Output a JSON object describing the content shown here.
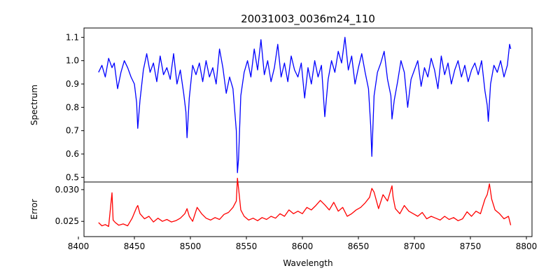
{
  "chart_data": [
    {
      "type": "line",
      "title": "20031003_0036m24_110",
      "xlabel": "",
      "ylabel": "Spectrum",
      "xlim": [
        8405,
        8805
      ],
      "ylim": [
        0.48,
        1.14
      ],
      "yticks": [
        0.5,
        0.6,
        0.7,
        0.8,
        0.9,
        1.0,
        1.1
      ],
      "ytick_labels": [
        "0.5",
        "0.6",
        "0.7",
        "0.8",
        "0.9",
        "1.0",
        "1.1"
      ],
      "grid": false,
      "series": [
        {
          "color": "#0000ff",
          "x": [
            8418,
            8421,
            8424,
            8427,
            8430,
            8432,
            8435,
            8438,
            8441,
            8444,
            8447,
            8450,
            8452,
            8453,
            8455,
            8458,
            8461,
            8464,
            8467,
            8470,
            8473,
            8476,
            8479,
            8482,
            8485,
            8488,
            8491,
            8494,
            8496,
            8497,
            8499,
            8502,
            8505,
            8508,
            8511,
            8514,
            8517,
            8520,
            8523,
            8526,
            8529,
            8532,
            8535,
            8538,
            8541,
            8542,
            8543,
            8545,
            8548,
            8551,
            8554,
            8557,
            8560,
            8563,
            8566,
            8569,
            8572,
            8575,
            8578,
            8581,
            8584,
            8587,
            8590,
            8593,
            8596,
            8599,
            8602,
            8605,
            8608,
            8611,
            8614,
            8617,
            8620,
            8623,
            8626,
            8629,
            8632,
            8635,
            8638,
            8641,
            8644,
            8647,
            8650,
            8653,
            8656,
            8659,
            8661,
            8662,
            8664,
            8667,
            8670,
            8673,
            8676,
            8679,
            8680,
            8682,
            8685,
            8688,
            8691,
            8694,
            8697,
            8700,
            8703,
            8706,
            8709,
            8712,
            8715,
            8718,
            8721,
            8724,
            8727,
            8730,
            8733,
            8736,
            8739,
            8742,
            8745,
            8748,
            8751,
            8754,
            8757,
            8760,
            8763,
            8765,
            8766,
            8768,
            8771,
            8774,
            8777,
            8780,
            8783,
            8785,
            8786
          ],
          "y": [
            0.95,
            0.98,
            0.93,
            1.01,
            0.97,
            0.99,
            0.88,
            0.95,
            1.0,
            0.97,
            0.93,
            0.9,
            0.82,
            0.71,
            0.83,
            0.96,
            1.03,
            0.95,
            0.99,
            0.91,
            1.02,
            0.94,
            0.97,
            0.92,
            1.03,
            0.9,
            0.96,
            0.86,
            0.78,
            0.67,
            0.84,
            0.98,
            0.94,
            0.99,
            0.91,
            1.0,
            0.93,
            0.97,
            0.9,
            1.05,
            0.97,
            0.86,
            0.93,
            0.88,
            0.7,
            0.52,
            0.58,
            0.85,
            0.95,
            1.0,
            0.93,
            1.05,
            0.96,
            1.09,
            0.94,
            1.0,
            0.91,
            0.97,
            1.07,
            0.93,
            0.99,
            0.91,
            1.02,
            0.96,
            0.93,
            0.99,
            0.84,
            0.97,
            0.9,
            1.0,
            0.93,
            0.98,
            0.76,
            0.92,
            1.0,
            0.95,
            1.04,
            0.99,
            1.1,
            0.96,
            1.02,
            0.9,
            0.97,
            1.03,
            0.95,
            0.88,
            0.72,
            0.59,
            0.85,
            0.95,
            0.99,
            1.04,
            0.92,
            0.85,
            0.75,
            0.83,
            0.91,
            1.0,
            0.95,
            0.8,
            0.92,
            0.96,
            1.0,
            0.89,
            0.97,
            0.93,
            1.01,
            0.96,
            0.88,
            1.02,
            0.94,
            0.99,
            0.9,
            0.96,
            1.0,
            0.93,
            0.98,
            0.91,
            0.96,
            0.99,
            0.94,
            1.0,
            0.87,
            0.81,
            0.74,
            0.9,
            0.98,
            0.95,
            1.0,
            0.93,
            0.98,
            1.07,
            1.05
          ]
        }
      ]
    },
    {
      "type": "line",
      "title": "",
      "xlabel": "Wavelength",
      "ylabel": "Error",
      "xlim": [
        8405,
        8805
      ],
      "ylim": [
        0.0226,
        0.0312
      ],
      "xticks": [
        8400,
        8450,
        8500,
        8550,
        8600,
        8650,
        8700,
        8750,
        8800
      ],
      "xtick_labels": [
        "8400",
        "8450",
        "8500",
        "8550",
        "8600",
        "8650",
        "8700",
        "8750",
        "8800"
      ],
      "yticks": [
        0.025,
        0.03
      ],
      "ytick_labels": [
        "0.025",
        "0.030"
      ],
      "grid": false,
      "series": [
        {
          "color": "#ff0000",
          "x": [
            8418,
            8421,
            8424,
            8427,
            8430,
            8431,
            8433,
            8436,
            8440,
            8444,
            8448,
            8452,
            8453,
            8455,
            8459,
            8463,
            8467,
            8471,
            8475,
            8479,
            8483,
            8487,
            8491,
            8495,
            8497,
            8499,
            8502,
            8506,
            8510,
            8514,
            8518,
            8522,
            8526,
            8530,
            8534,
            8538,
            8541,
            8542,
            8543,
            8545,
            8548,
            8552,
            8556,
            8560,
            8564,
            8568,
            8572,
            8576,
            8580,
            8584,
            8588,
            8592,
            8596,
            8600,
            8604,
            8608,
            8612,
            8616,
            8620,
            8624,
            8628,
            8632,
            8636,
            8640,
            8644,
            8648,
            8652,
            8656,
            8660,
            8662,
            8664,
            8668,
            8672,
            8676,
            8680,
            8681,
            8683,
            8687,
            8691,
            8695,
            8699,
            8703,
            8707,
            8711,
            8715,
            8719,
            8723,
            8727,
            8731,
            8735,
            8739,
            8743,
            8747,
            8751,
            8755,
            8759,
            8763,
            8765,
            8767,
            8769,
            8772,
            8776,
            8780,
            8784,
            8786
          ],
          "y": [
            0.0248,
            0.0243,
            0.0245,
            0.0242,
            0.0295,
            0.0252,
            0.0248,
            0.0244,
            0.0246,
            0.0243,
            0.0255,
            0.0272,
            0.0275,
            0.0262,
            0.0254,
            0.0258,
            0.0249,
            0.0255,
            0.025,
            0.0253,
            0.0249,
            0.0251,
            0.0255,
            0.0262,
            0.027,
            0.0258,
            0.025,
            0.0272,
            0.0262,
            0.0255,
            0.0252,
            0.0256,
            0.0253,
            0.0261,
            0.0264,
            0.0272,
            0.0282,
            0.0318,
            0.0302,
            0.0268,
            0.0258,
            0.0252,
            0.0255,
            0.0251,
            0.0256,
            0.0253,
            0.0258,
            0.0255,
            0.0262,
            0.0258,
            0.0268,
            0.0262,
            0.0266,
            0.0262,
            0.0272,
            0.0268,
            0.0275,
            0.0283,
            0.0276,
            0.0268,
            0.028,
            0.0266,
            0.0272,
            0.0258,
            0.0262,
            0.0268,
            0.0272,
            0.0279,
            0.0288,
            0.0302,
            0.0296,
            0.027,
            0.0292,
            0.0282,
            0.0306,
            0.0288,
            0.027,
            0.0262,
            0.0275,
            0.0266,
            0.0262,
            0.0258,
            0.0264,
            0.0254,
            0.0258,
            0.0255,
            0.0252,
            0.0258,
            0.0253,
            0.0256,
            0.0251,
            0.0254,
            0.0265,
            0.0258,
            0.0266,
            0.0262,
            0.0285,
            0.0292,
            0.0309,
            0.0285,
            0.0268,
            0.0262,
            0.0254,
            0.0258,
            0.0244
          ]
        }
      ]
    }
  ]
}
